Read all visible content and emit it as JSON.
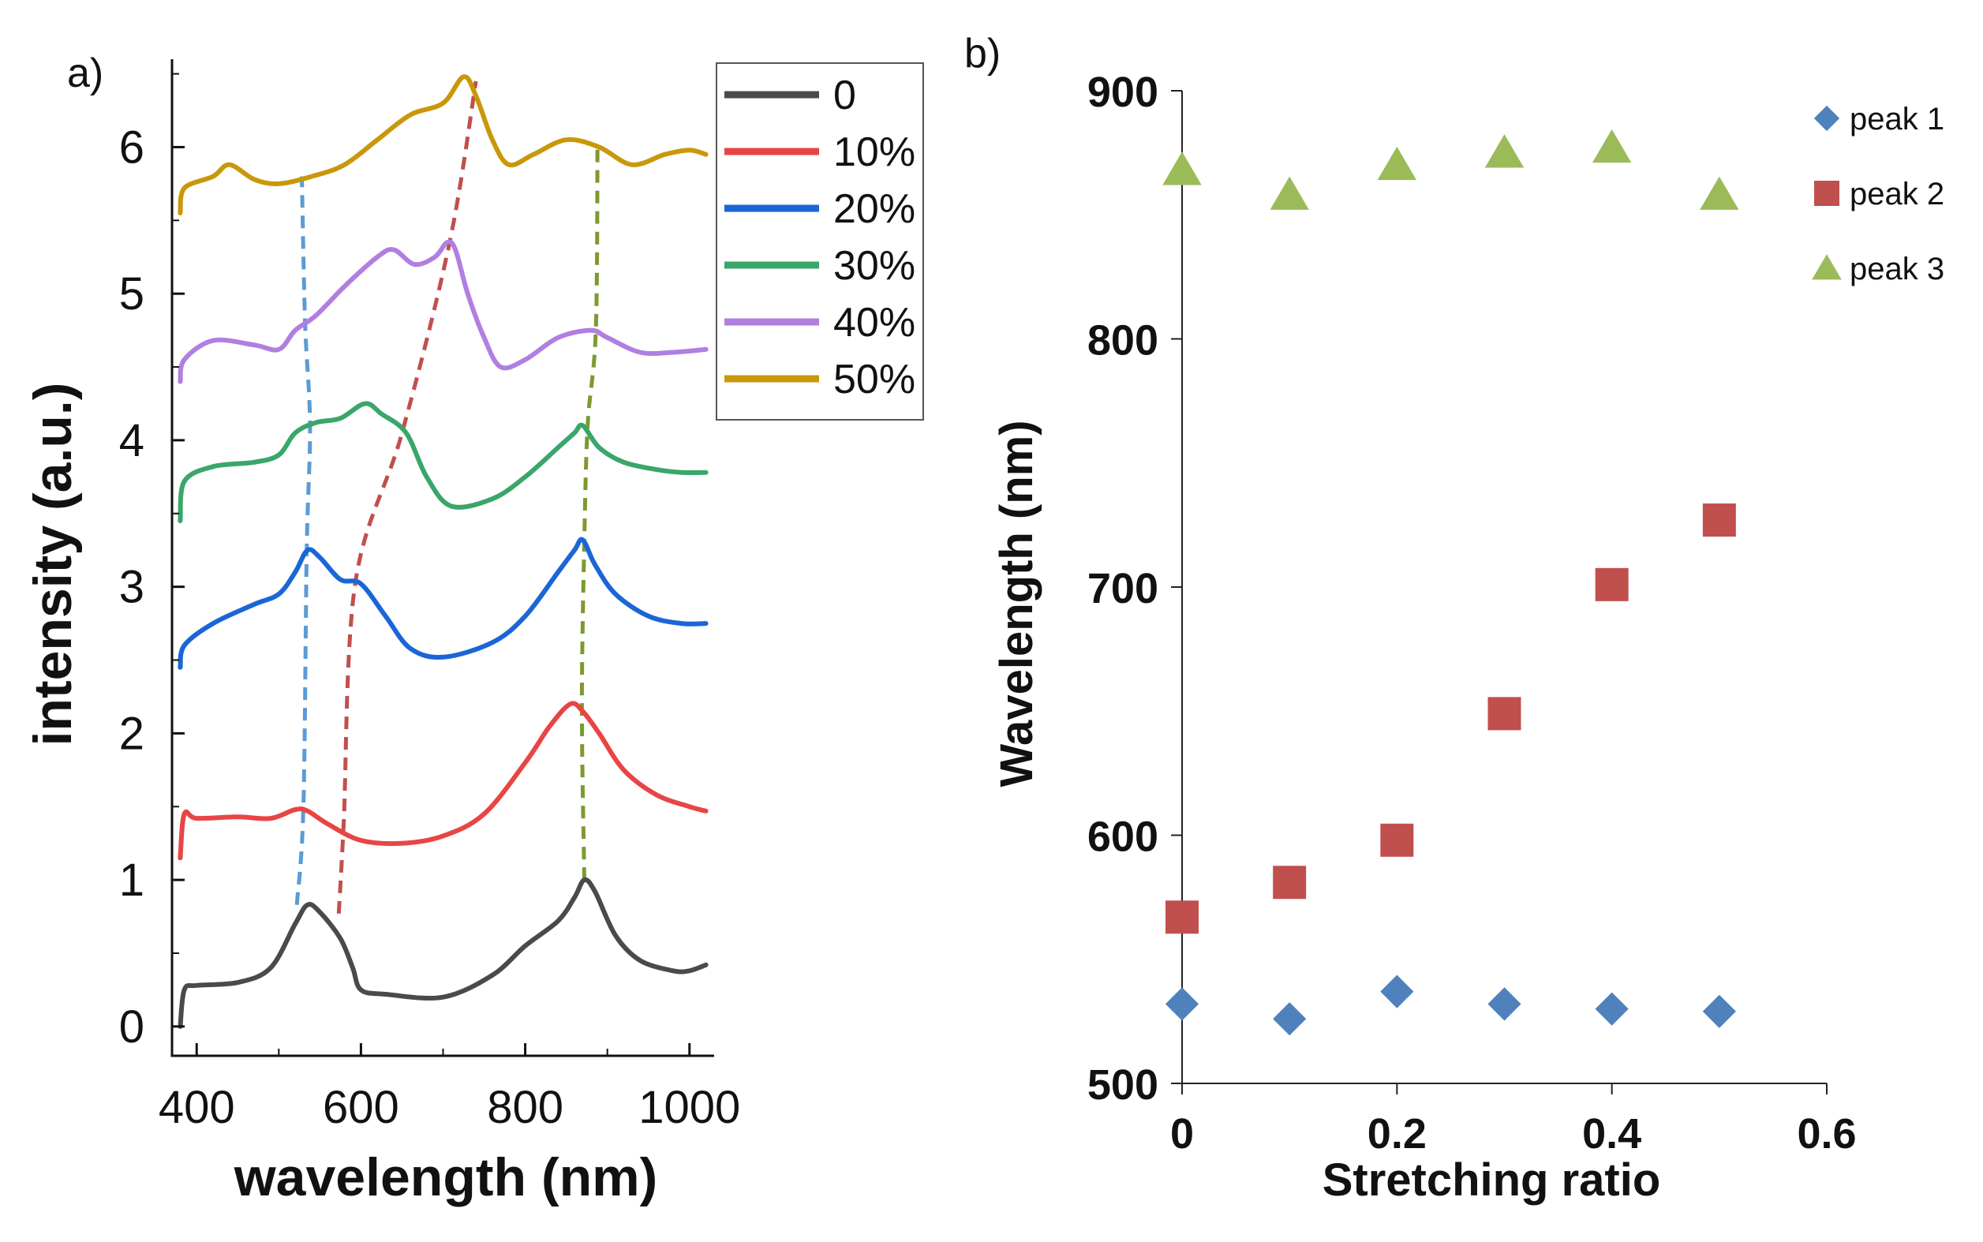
{
  "chart_data": [
    {
      "panel_label": "a)",
      "type": "line",
      "xlabel": "wavelength (nm)",
      "ylabel": "intensity (a.u.)",
      "xlim": [
        370,
        1030
      ],
      "ylim": [
        -0.2,
        6.6
      ],
      "xticks": [
        400,
        600,
        800,
        1000
      ],
      "yticks": [
        0,
        1,
        2,
        3,
        4,
        5,
        6
      ],
      "legend_position": "top-right",
      "series": [
        {
          "name": "0",
          "color": "#4a4a4a",
          "points": [
            [
              380,
              0.0
            ],
            [
              385,
              0.25
            ],
            [
              400,
              0.28
            ],
            [
              450,
              0.3
            ],
            [
              490,
              0.4
            ],
            [
              520,
              0.7
            ],
            [
              535,
              0.83
            ],
            [
              550,
              0.78
            ],
            [
              575,
              0.6
            ],
            [
              590,
              0.4
            ],
            [
              600,
              0.25
            ],
            [
              630,
              0.22
            ],
            [
              700,
              0.2
            ],
            [
              760,
              0.35
            ],
            [
              800,
              0.55
            ],
            [
              840,
              0.72
            ],
            [
              860,
              0.88
            ],
            [
              872,
              1.0
            ],
            [
              885,
              0.92
            ],
            [
              910,
              0.62
            ],
            [
              940,
              0.45
            ],
            [
              980,
              0.38
            ],
            [
              1000,
              0.38
            ],
            [
              1020,
              0.42
            ]
          ]
        },
        {
          "name": "10%",
          "color": "#e84545",
          "points": [
            [
              380,
              1.15
            ],
            [
              385,
              1.45
            ],
            [
              400,
              1.42
            ],
            [
              450,
              1.43
            ],
            [
              490,
              1.42
            ],
            [
              520,
              1.48
            ],
            [
              535,
              1.47
            ],
            [
              560,
              1.38
            ],
            [
              600,
              1.27
            ],
            [
              650,
              1.25
            ],
            [
              700,
              1.3
            ],
            [
              750,
              1.45
            ],
            [
              800,
              1.8
            ],
            [
              830,
              2.05
            ],
            [
              855,
              2.2
            ],
            [
              870,
              2.15
            ],
            [
              890,
              2.0
            ],
            [
              920,
              1.75
            ],
            [
              960,
              1.58
            ],
            [
              1000,
              1.5
            ],
            [
              1020,
              1.47
            ]
          ]
        },
        {
          "name": "20%",
          "color": "#1a66d6",
          "points": [
            [
              380,
              2.45
            ],
            [
              385,
              2.6
            ],
            [
              420,
              2.75
            ],
            [
              470,
              2.88
            ],
            [
              500,
              2.95
            ],
            [
              520,
              3.1
            ],
            [
              535,
              3.25
            ],
            [
              550,
              3.2
            ],
            [
              575,
              3.05
            ],
            [
              600,
              3.02
            ],
            [
              630,
              2.8
            ],
            [
              660,
              2.58
            ],
            [
              700,
              2.52
            ],
            [
              760,
              2.62
            ],
            [
              800,
              2.8
            ],
            [
              840,
              3.1
            ],
            [
              860,
              3.25
            ],
            [
              870,
              3.32
            ],
            [
              885,
              3.15
            ],
            [
              910,
              2.95
            ],
            [
              950,
              2.8
            ],
            [
              990,
              2.75
            ],
            [
              1020,
              2.75
            ]
          ]
        },
        {
          "name": "30%",
          "color": "#3aa66a",
          "points": [
            [
              380,
              3.45
            ],
            [
              385,
              3.72
            ],
            [
              420,
              3.82
            ],
            [
              470,
              3.85
            ],
            [
              500,
              3.9
            ],
            [
              520,
              4.05
            ],
            [
              545,
              4.12
            ],
            [
              575,
              4.15
            ],
            [
              605,
              4.25
            ],
            [
              625,
              4.18
            ],
            [
              655,
              4.05
            ],
            [
              680,
              3.75
            ],
            [
              710,
              3.55
            ],
            [
              760,
              3.6
            ],
            [
              800,
              3.75
            ],
            [
              840,
              3.95
            ],
            [
              860,
              4.05
            ],
            [
              870,
              4.1
            ],
            [
              890,
              3.95
            ],
            [
              920,
              3.85
            ],
            [
              960,
              3.8
            ],
            [
              990,
              3.78
            ],
            [
              1020,
              3.78
            ]
          ]
        },
        {
          "name": "40%",
          "color": "#b07fe0",
          "points": [
            [
              380,
              4.4
            ],
            [
              385,
              4.55
            ],
            [
              420,
              4.68
            ],
            [
              470,
              4.65
            ],
            [
              500,
              4.62
            ],
            [
              520,
              4.75
            ],
            [
              545,
              4.85
            ],
            [
              580,
              5.05
            ],
            [
              620,
              5.25
            ],
            [
              640,
              5.3
            ],
            [
              665,
              5.2
            ],
            [
              690,
              5.25
            ],
            [
              705,
              5.35
            ],
            [
              715,
              5.3
            ],
            [
              730,
              5.0
            ],
            [
              750,
              4.7
            ],
            [
              770,
              4.5
            ],
            [
              800,
              4.55
            ],
            [
              840,
              4.7
            ],
            [
              880,
              4.75
            ],
            [
              900,
              4.7
            ],
            [
              940,
              4.6
            ],
            [
              980,
              4.6
            ],
            [
              1020,
              4.62
            ]
          ]
        },
        {
          "name": "50%",
          "color": "#c9980a",
          "points": [
            [
              380,
              5.55
            ],
            [
              385,
              5.72
            ],
            [
              420,
              5.8
            ],
            [
              440,
              5.88
            ],
            [
              470,
              5.78
            ],
            [
              500,
              5.75
            ],
            [
              540,
              5.8
            ],
            [
              580,
              5.88
            ],
            [
              620,
              6.05
            ],
            [
              660,
              6.22
            ],
            [
              700,
              6.3
            ],
            [
              725,
              6.48
            ],
            [
              740,
              6.35
            ],
            [
              760,
              6.05
            ],
            [
              780,
              5.88
            ],
            [
              810,
              5.95
            ],
            [
              850,
              6.05
            ],
            [
              890,
              6.0
            ],
            [
              930,
              5.88
            ],
            [
              970,
              5.95
            ],
            [
              1000,
              5.98
            ],
            [
              1020,
              5.95
            ]
          ]
        }
      ],
      "peak_guides": [
        {
          "color": "#5b9bd5",
          "points": [
            [
              522,
              0.83
            ],
            [
              530,
              1.5
            ],
            [
              534,
              3.25
            ],
            [
              538,
              4.1
            ],
            [
              532,
              4.8
            ],
            [
              528,
              5.8
            ]
          ]
        },
        {
          "color": "#c0504d",
          "points": [
            [
              573,
              0.77
            ],
            [
              579,
              1.38
            ],
            [
              593,
              3.02
            ],
            [
              650,
              4.05
            ],
            [
              708,
              5.35
            ],
            [
              740,
              6.45
            ]
          ]
        },
        {
          "color": "#7c9a2f",
          "points": [
            [
              872,
              1.0
            ],
            [
              869,
              2.18
            ],
            [
              872,
              3.32
            ],
            [
              876,
              4.1
            ],
            [
              886,
              4.75
            ],
            [
              888,
              6.02
            ]
          ]
        }
      ]
    },
    {
      "panel_label": "b)",
      "type": "scatter",
      "xlabel": "Stretching ratio",
      "ylabel": "Wavelength (nm)",
      "xlim": [
        0,
        0.6
      ],
      "ylim": [
        500,
        900
      ],
      "xticks": [
        "0",
        "0.2",
        "0.4",
        "0.6"
      ],
      "yticks": [
        "500",
        "600",
        "700",
        "800",
        "900"
      ],
      "legend_position": "top-right",
      "x": [
        0,
        0.1,
        0.2,
        0.3,
        0.4,
        0.5
      ],
      "series": [
        {
          "name": "peak 1",
          "marker": "diamond",
          "color": "#4f81bd",
          "values": [
            532,
            526,
            537,
            532,
            530,
            529
          ]
        },
        {
          "name": "peak 2",
          "marker": "square",
          "color": "#c0504d",
          "values": [
            567,
            581,
            598,
            649,
            701,
            727
          ]
        },
        {
          "name": "peak 3",
          "marker": "triangle",
          "color": "#9bbb59",
          "values": [
            868,
            858,
            870,
            875,
            877,
            858
          ]
        }
      ]
    }
  ]
}
